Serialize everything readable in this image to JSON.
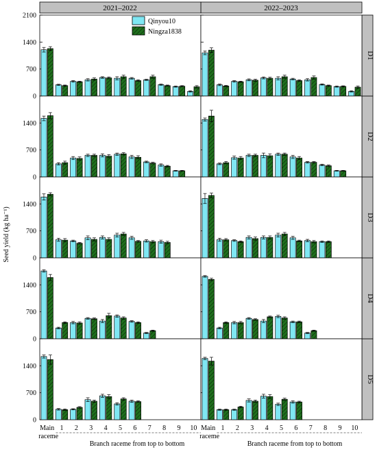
{
  "chart_data": {
    "type": "bar",
    "ylabel": "Seed yield (kg ha⁻¹)",
    "xlabel": "Branch raceme from top to bottom",
    "categories": [
      "Main raceme",
      "1",
      "2",
      "3",
      "4",
      "5",
      "6",
      "7",
      "8",
      "9",
      "10"
    ],
    "main_label_lines": [
      "Main",
      "raceme"
    ],
    "ylim": [
      0,
      2100
    ],
    "yticks": [
      0,
      700,
      1400,
      2100
    ],
    "grid": false,
    "legend_position": "top-center",
    "colors": {
      "Qinyou10": "#7fe7f3",
      "Ningza1838": "#1f6f1d",
      "strip": "#c0c0c0"
    },
    "columns": [
      "2021–2022",
      "2022–2023"
    ],
    "rows": [
      "D1",
      "D2",
      "D3",
      "D4",
      "D5"
    ],
    "series_names": [
      "Qinyou10",
      "Ningza1838"
    ],
    "panels": [
      {
        "row": "D1",
        "col": "2021–2022",
        "series": [
          {
            "name": "Qinyou10",
            "values": [
              1200,
              290,
              380,
              420,
              480,
              460,
              460,
              420,
              295,
              245,
              120
            ],
            "errors": [
              60,
              15,
              20,
              30,
              20,
              40,
              20,
              15,
              15,
              15,
              15
            ]
          },
          {
            "name": "Ningza1838",
            "values": [
              1230,
              270,
              370,
              440,
              470,
              500,
              400,
              500,
              270,
              255,
              240
            ],
            "errors": [
              50,
              15,
              15,
              30,
              25,
              40,
              20,
              40,
              15,
              15,
              30
            ]
          }
        ]
      },
      {
        "row": "D1",
        "col": "2022–2023",
        "series": [
          {
            "name": "Qinyou10",
            "values": [
              1120,
              290,
              380,
              420,
              470,
              460,
              440,
              420,
              300,
              245,
              120
            ],
            "errors": [
              50,
              20,
              20,
              25,
              25,
              40,
              20,
              30,
              15,
              15,
              15
            ]
          },
          {
            "name": "Ningza1838",
            "values": [
              1190,
              260,
              370,
              410,
              460,
              500,
              400,
              480,
              270,
              250,
              230
            ],
            "errors": [
              60,
              15,
              15,
              25,
              30,
              40,
              20,
              40,
              15,
              15,
              30
            ]
          }
        ]
      },
      {
        "row": "D2",
        "col": "2021–2022",
        "series": [
          {
            "name": "Qinyou10",
            "values": [
              1520,
              340,
              490,
              560,
              560,
              590,
              520,
              390,
              310,
              160,
              0
            ],
            "errors": [
              60,
              30,
              40,
              30,
              40,
              30,
              40,
              20,
              30,
              10,
              0
            ]
          },
          {
            "name": "Ningza1838",
            "values": [
              1590,
              370,
              480,
              560,
              540,
              600,
              510,
              360,
              280,
              160,
              0
            ],
            "errors": [
              80,
              40,
              40,
              30,
              40,
              30,
              40,
              20,
              20,
              10,
              0
            ]
          }
        ]
      },
      {
        "row": "D2",
        "col": "2022–2023",
        "series": [
          {
            "name": "Qinyou10",
            "values": [
              1490,
              340,
              500,
              560,
              560,
              590,
              520,
              380,
              310,
              160,
              0
            ],
            "errors": [
              40,
              20,
              40,
              30,
              60,
              30,
              40,
              20,
              20,
              10,
              0
            ]
          },
          {
            "name": "Ningza1838",
            "values": [
              1580,
              370,
              490,
              560,
              550,
              590,
              490,
              380,
              290,
              160,
              0
            ],
            "errors": [
              150,
              30,
              40,
              30,
              50,
              30,
              40,
              20,
              20,
              10,
              0
            ]
          }
        ]
      },
      {
        "row": "D3",
        "col": "2021–2022",
        "series": [
          {
            "name": "Qinyou10",
            "values": [
              1580,
              470,
              440,
              520,
              530,
              590,
              520,
              440,
              420,
              0,
              0
            ],
            "errors": [
              80,
              40,
              20,
              50,
              40,
              50,
              40,
              30,
              40,
              0,
              0
            ]
          },
          {
            "name": "Ningza1838",
            "values": [
              1650,
              460,
              380,
              480,
              480,
              620,
              430,
              420,
              400,
              0,
              0
            ],
            "errors": [
              40,
              40,
              20,
              40,
              40,
              40,
              20,
              30,
              30,
              0,
              0
            ]
          }
        ]
      },
      {
        "row": "D3",
        "col": "2022–2023",
        "series": [
          {
            "name": "Qinyou10",
            "values": [
              1540,
              470,
              450,
              530,
              530,
              590,
              520,
              450,
              420,
              0,
              0
            ],
            "errors": [
              130,
              40,
              20,
              40,
              40,
              50,
              40,
              30,
              20,
              0,
              0
            ]
          },
          {
            "name": "Ningza1838",
            "values": [
              1620,
              470,
              420,
              500,
              530,
              620,
              440,
              420,
              420,
              0,
              0
            ],
            "errors": [
              60,
              30,
              20,
              40,
              40,
              40,
              20,
              30,
              20,
              0,
              0
            ]
          }
        ]
      },
      {
        "row": "D4",
        "col": "2021–2022",
        "series": [
          {
            "name": "Qinyou10",
            "values": [
              1760,
              280,
              420,
              530,
              460,
              590,
              450,
              150,
              0,
              0,
              0
            ],
            "errors": [
              30,
              20,
              30,
              20,
              40,
              30,
              20,
              15,
              0,
              0,
              0
            ]
          },
          {
            "name": "Ningza1838",
            "values": [
              1590,
              420,
              410,
              520,
              600,
              540,
              420,
              210,
              0,
              0,
              0
            ],
            "errors": [
              80,
              20,
              30,
              20,
              60,
              30,
              20,
              15,
              0,
              0,
              0
            ]
          }
        ]
      },
      {
        "row": "D4",
        "col": "2022–2023",
        "series": [
          {
            "name": "Qinyou10",
            "values": [
              1620,
              280,
              420,
              530,
              460,
              580,
              440,
              150,
              0,
              0,
              0
            ],
            "errors": [
              20,
              20,
              30,
              20,
              40,
              30,
              20,
              15,
              0,
              0,
              0
            ]
          },
          {
            "name": "Ningza1838",
            "values": [
              1540,
              420,
              420,
              500,
              570,
              540,
              440,
              210,
              0,
              0,
              0
            ],
            "errors": [
              30,
              20,
              30,
              20,
              20,
              30,
              20,
              15,
              0,
              0,
              0
            ]
          }
        ]
      },
      {
        "row": "D5",
        "col": "2021–2022",
        "series": [
          {
            "name": "Qinyou10",
            "values": [
              1640,
              270,
              270,
              520,
              620,
              410,
              480,
              0,
              0,
              0,
              0
            ],
            "errors": [
              40,
              20,
              15,
              50,
              40,
              30,
              30,
              0,
              0,
              0,
              0
            ]
          },
          {
            "name": "Ningza1838",
            "values": [
              1560,
              260,
              320,
              480,
              600,
              540,
              470,
              0,
              0,
              0,
              0
            ],
            "errors": [
              120,
              20,
              20,
              30,
              50,
              30,
              20,
              0,
              0,
              0,
              0
            ]
          }
        ]
      },
      {
        "row": "D5",
        "col": "2022–2023",
        "series": [
          {
            "name": "Qinyou10",
            "values": [
              1590,
              260,
              260,
              500,
              610,
              400,
              460,
              0,
              0,
              0,
              0
            ],
            "errors": [
              30,
              15,
              15,
              40,
              50,
              30,
              30,
              0,
              0,
              0,
              0
            ]
          },
          {
            "name": "Ningza1838",
            "values": [
              1520,
              260,
              330,
              480,
              600,
              530,
              460,
              0,
              0,
              0,
              0
            ],
            "errors": [
              100,
              15,
              20,
              30,
              50,
              30,
              20,
              0,
              0,
              0,
              0
            ]
          }
        ]
      }
    ]
  }
}
